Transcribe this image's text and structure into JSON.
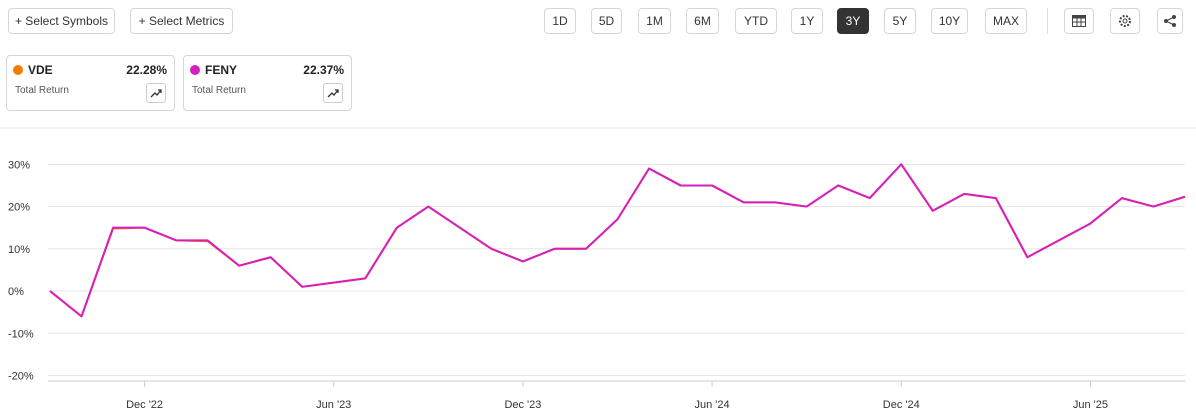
{
  "toolbar": {
    "add_buttons": [
      "+ Select Symbols",
      "+ Select Metrics"
    ],
    "ranges": [
      "1D",
      "5D",
      "1M",
      "6M",
      "YTD",
      "1Y",
      "3Y",
      "5Y",
      "10Y",
      "MAX"
    ],
    "selected_range": "3Y"
  },
  "cards": [
    {
      "value": "22.28%",
      "metric": "Total Return"
    },
    {
      "value": "22.37%",
      "metric": "Total Return"
    }
  ],
  "chart_data": {
    "type": "line",
    "x": [
      "2022-09",
      "2022-10",
      "2022-11",
      "2022-12",
      "2023-01",
      "2023-02",
      "2023-03",
      "2023-04",
      "2023-05",
      "2023-06",
      "2023-07",
      "2023-08",
      "2023-09",
      "2023-10",
      "2023-11",
      "2023-12",
      "2024-01",
      "2024-02",
      "2024-03",
      "2024-04",
      "2024-05",
      "2024-06",
      "2024-07",
      "2024-08",
      "2024-09",
      "2024-10",
      "2024-11",
      "2024-12",
      "2025-01",
      "2025-02",
      "2025-03",
      "2025-04",
      "2025-05",
      "2025-06",
      "2025-07",
      "2025-08",
      "2025-09"
    ],
    "series": [
      {
        "name": "VDE",
        "color": "#f57c00",
        "values": [
          0,
          -6,
          14.8,
          15,
          12,
          11.8,
          6,
          8,
          1,
          2,
          3,
          15,
          20,
          15,
          10,
          7,
          10,
          10,
          17,
          29,
          25,
          25,
          21,
          21,
          20,
          25,
          22,
          30,
          19,
          23,
          22,
          8,
          12,
          16,
          22,
          20,
          22.28
        ]
      },
      {
        "name": "FENY",
        "color": "#d61fc0",
        "values": [
          0,
          -6,
          15,
          15,
          12,
          12,
          6,
          8,
          1,
          2,
          3,
          15,
          20,
          15,
          10,
          7,
          10,
          10,
          17,
          29,
          25,
          25,
          21,
          21,
          20,
          25,
          22,
          30,
          19,
          23,
          22,
          8,
          12,
          16,
          22,
          20,
          22.37
        ]
      }
    ],
    "xlim": [
      "2022-09",
      "2025-09"
    ],
    "xticks": [
      {
        "value": "2022-12",
        "label": "Dec '22"
      },
      {
        "value": "2023-06",
        "label": "Jun '23"
      },
      {
        "value": "2023-12",
        "label": "Dec '23"
      },
      {
        "value": "2024-06",
        "label": "Jun '24"
      },
      {
        "value": "2024-12",
        "label": "Dec '24"
      },
      {
        "value": "2025-06",
        "label": "Jun '25"
      }
    ],
    "ylim": [
      -21.3,
      38.6
    ],
    "yticks": [
      {
        "value": -20,
        "label": "-20%"
      },
      {
        "value": -10,
        "label": "-10%"
      },
      {
        "value": 0,
        "label": "0%"
      },
      {
        "value": 10,
        "label": "10%"
      },
      {
        "value": 20,
        "label": "20%"
      },
      {
        "value": 30,
        "label": "30%"
      }
    ],
    "grid": true
  }
}
